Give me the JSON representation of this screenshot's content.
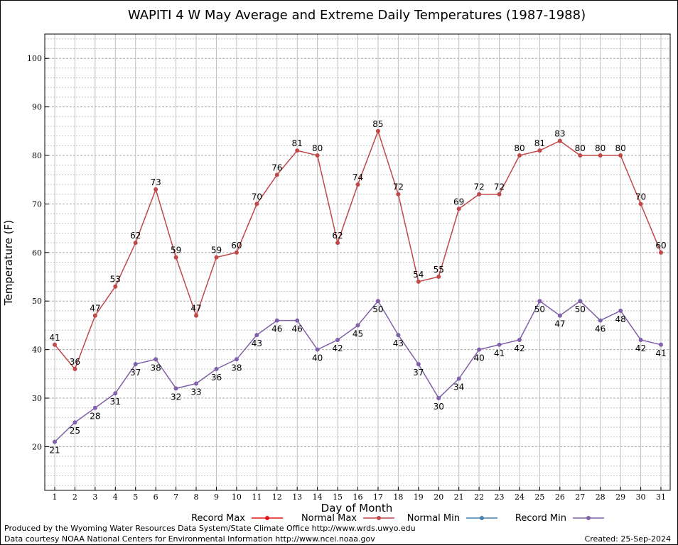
{
  "chart_data": {
    "type": "line",
    "title": "WAPITI 4 W May Average and Extreme Daily Temperatures (1987-1988)",
    "xlabel": "Day of Month",
    "ylabel": "Temperature (F)",
    "xlim": [
      1,
      31
    ],
    "ylim": [
      11,
      105
    ],
    "yticks": [
      20,
      30,
      40,
      50,
      60,
      70,
      80,
      90,
      100
    ],
    "x": [
      1,
      2,
      3,
      4,
      5,
      6,
      7,
      8,
      9,
      10,
      11,
      12,
      13,
      14,
      15,
      16,
      17,
      18,
      19,
      20,
      21,
      22,
      23,
      24,
      25,
      26,
      27,
      28,
      29,
      30,
      31
    ],
    "grid": true,
    "legend_placement": "bottom",
    "legend": [
      {
        "name": "Record Max",
        "color": "#e01818"
      },
      {
        "name": "Normal Max",
        "color": "#c04848"
      },
      {
        "name": "Normal Min",
        "color": "#4682b4"
      },
      {
        "name": "Record Min",
        "color": "#8060a8"
      }
    ],
    "series": [
      {
        "name": "Record Max",
        "color": "#c04848",
        "labels_position": "above",
        "values": [
          41,
          36,
          47,
          53,
          62,
          73,
          59,
          47,
          59,
          60,
          70,
          76,
          81,
          80,
          62,
          74,
          85,
          72,
          54,
          55,
          69,
          72,
          72,
          80,
          81,
          83,
          80,
          80,
          80,
          70,
          60
        ]
      },
      {
        "name": "Record Min",
        "color": "#8060a8",
        "labels_position": "below",
        "values": [
          21,
          25,
          28,
          31,
          37,
          38,
          32,
          33,
          36,
          38,
          43,
          46,
          46,
          40,
          42,
          45,
          50,
          43,
          37,
          30,
          34,
          40,
          41,
          42,
          50,
          47,
          50,
          46,
          48,
          42,
          41
        ]
      }
    ]
  },
  "footer": {
    "line1": "Produced by the Wyoming Water Resources Data System/State Climate Office http://www.wrds.uwyo.edu",
    "line2": "Data courtesy NOAA National Centers for Environmental Information http://www.ncei.noaa.gov",
    "created": "Created:  25-Sep-2024"
  }
}
